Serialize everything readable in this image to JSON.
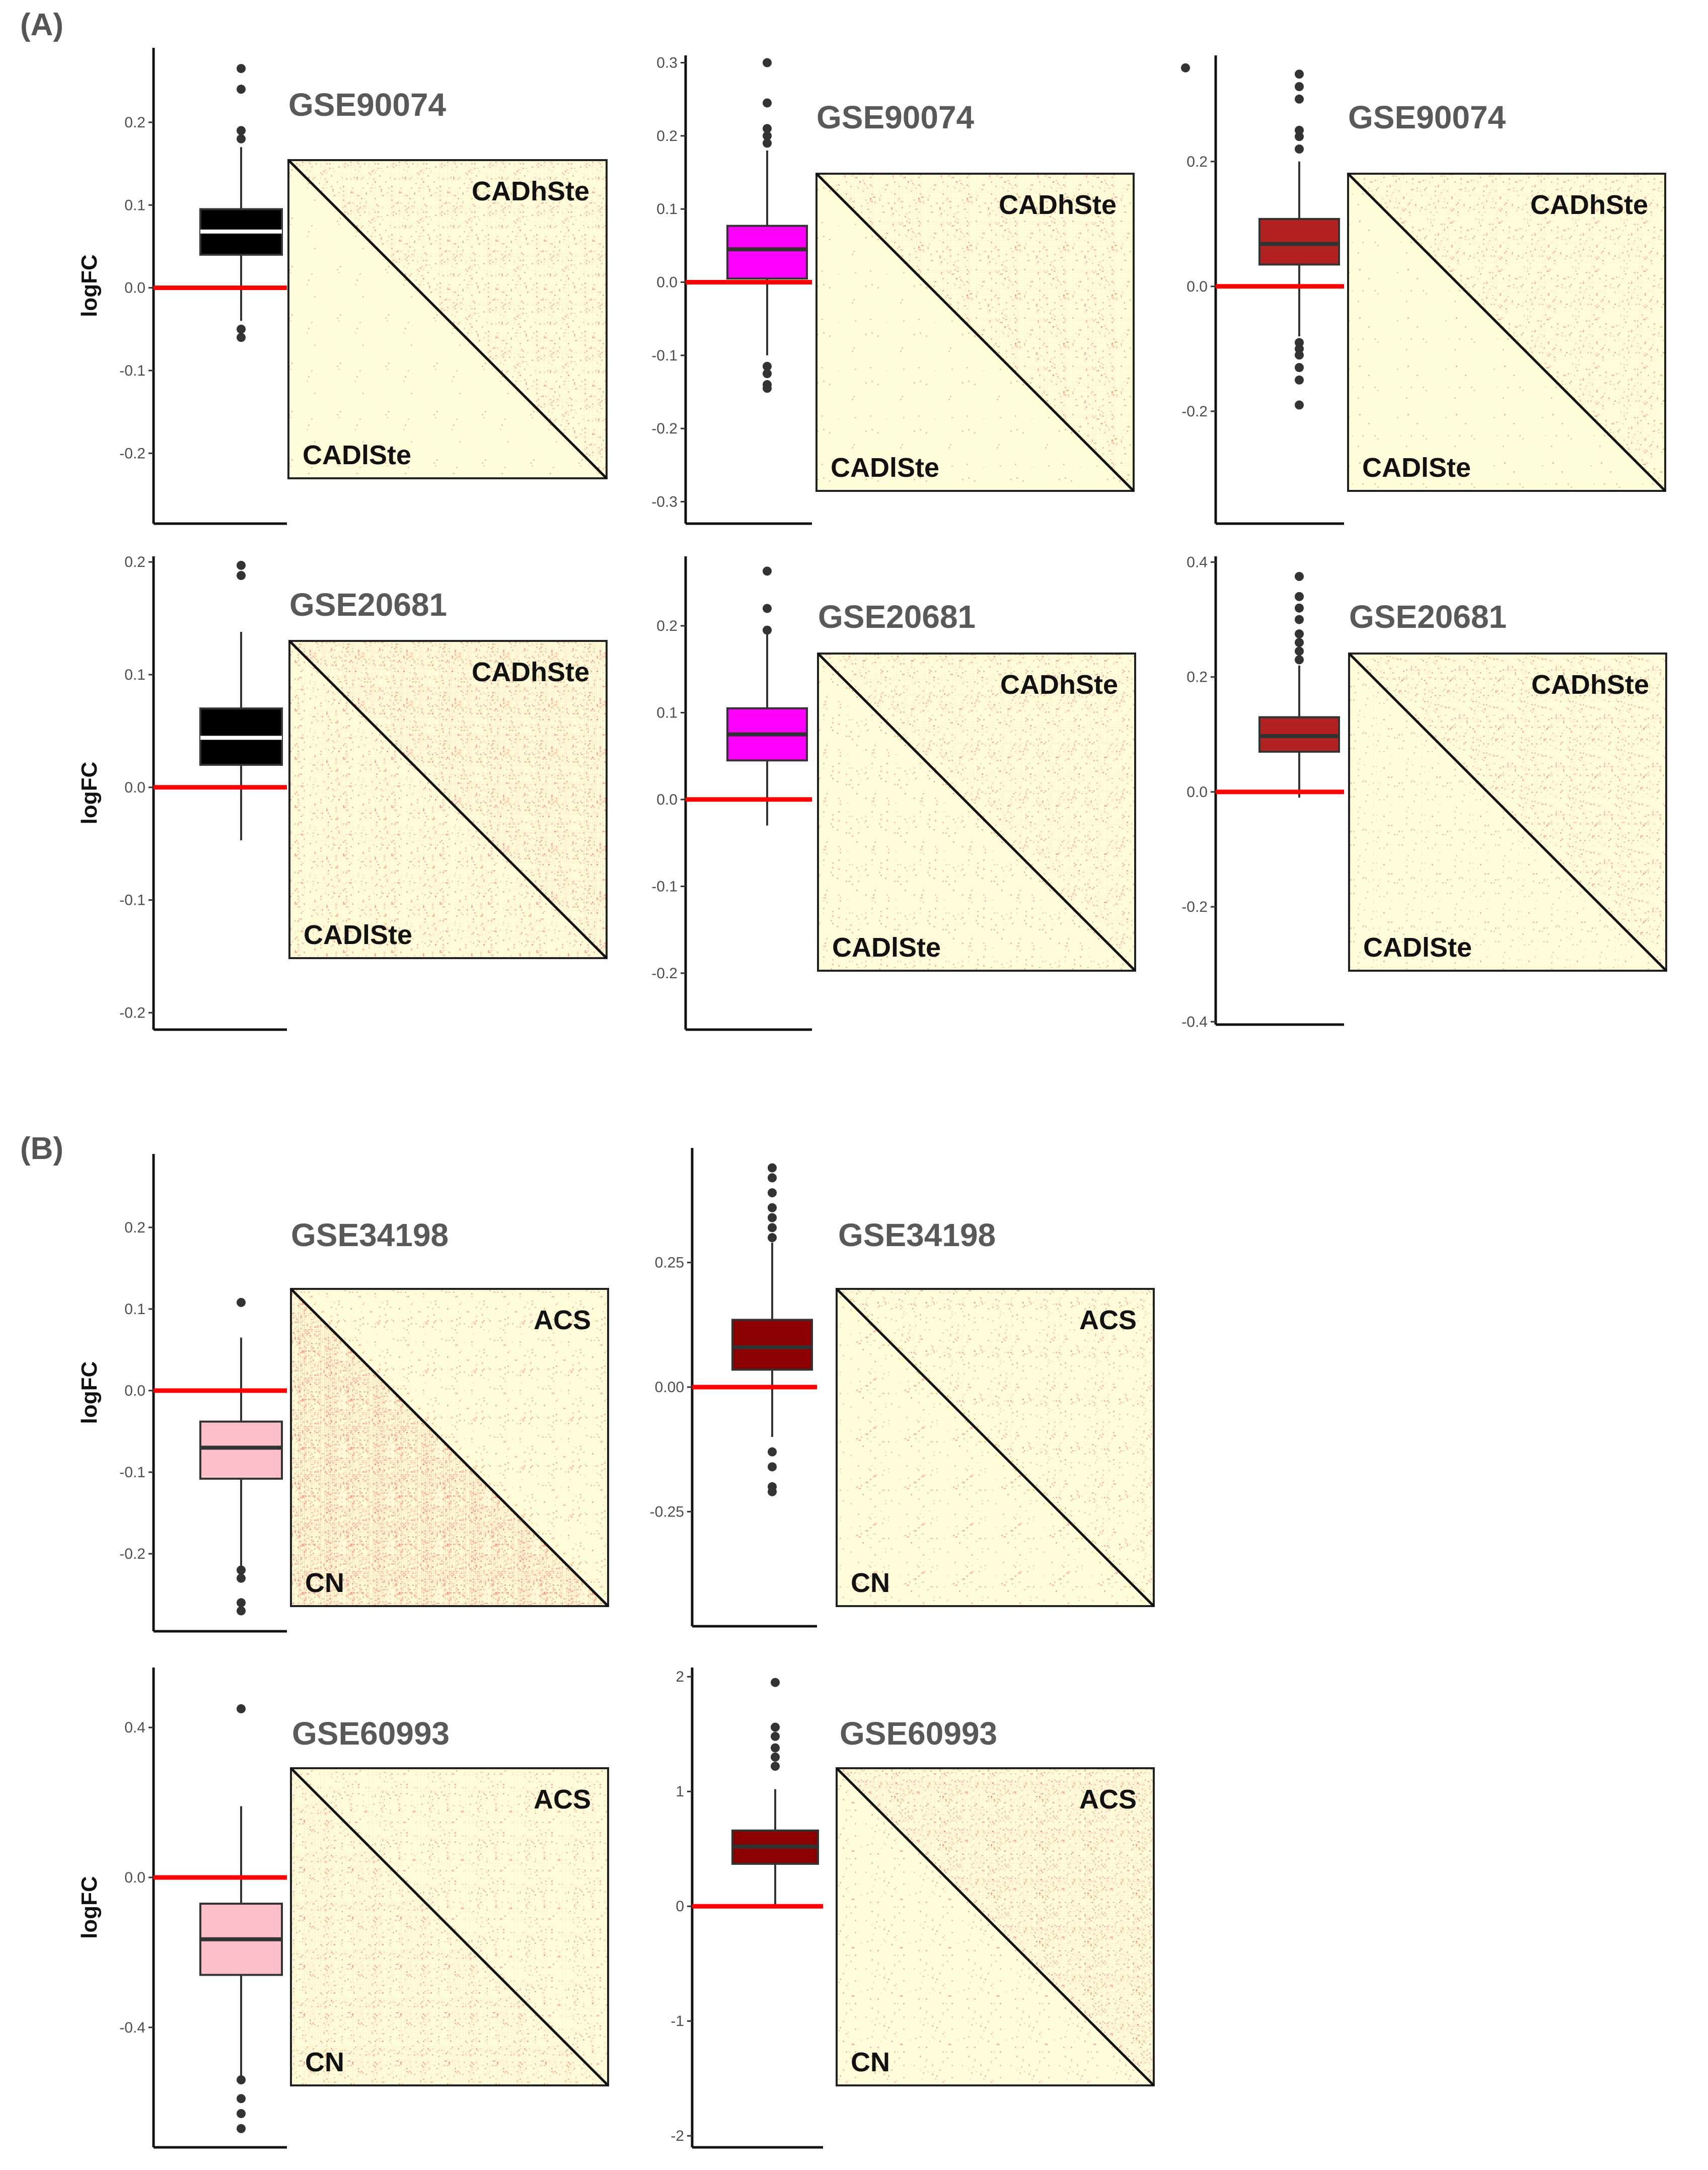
{
  "figure": {
    "panel_labels": [
      "(A)",
      "(B)"
    ],
    "colors": {
      "zero_line": "#ff0000",
      "heatmap_bg": "#fffedb",
      "heatmap_speckle": "#f08070",
      "axis": "#111111"
    }
  },
  "chart_data": [
    {
      "id": "A1a",
      "type": "box",
      "panel": "(A)",
      "dataset": "GSE90074",
      "ylabel": "logFC",
      "ylim": [
        -0.285,
        0.29
      ],
      "ticks": [
        -0.2,
        -0.1,
        0.0,
        0.1,
        0.2
      ],
      "tick_labels": [
        "-0.2",
        "-0.1",
        "0.0",
        "0.1",
        "0.2"
      ],
      "box": {
        "q1": 0.04,
        "median": 0.068,
        "q3": 0.095,
        "whisker_low": -0.04,
        "whisker_high": 0.17
      },
      "outliers": [
        -0.05,
        -0.06,
        0.18,
        0.19,
        0.24,
        0.265
      ],
      "fill": "#000000",
      "median_color": "#ffffff",
      "heatmap": {
        "title": "GSE90074",
        "upper_label": "CADhSte",
        "lower_label": "CADlSte",
        "upper_intensity": 0.35,
        "lower_intensity": 0.03
      }
    },
    {
      "id": "A1b",
      "type": "box",
      "panel": "(A)",
      "dataset": "GSE90074",
      "ylabel": "",
      "ylim": [
        -0.33,
        0.31
      ],
      "ticks": [
        -0.3,
        -0.2,
        -0.1,
        0.0,
        0.1,
        0.2,
        0.3
      ],
      "tick_labels": [
        "-0.3",
        "-0.2",
        "-0.1",
        "0.0",
        "0.1",
        "0.2",
        "0.3"
      ],
      "box": {
        "q1": 0.005,
        "median": 0.045,
        "q3": 0.077,
        "whisker_low": -0.1,
        "whisker_high": 0.18
      },
      "outliers": [
        -0.115,
        -0.125,
        -0.14,
        -0.145,
        0.19,
        0.2,
        0.21,
        0.245,
        0.3
      ],
      "fill": "#ff00ff",
      "median_color": "#333333",
      "heatmap": {
        "title": "GSE90074",
        "upper_label": "CADhSte",
        "lower_label": "CADlSte",
        "upper_intensity": 0.3,
        "lower_intensity": 0.03
      }
    },
    {
      "id": "A1c",
      "type": "box",
      "panel": "(A)",
      "dataset": "GSE90074",
      "ylabel": "",
      "ylim": [
        -0.38,
        0.37
      ],
      "ticks": [
        -0.2,
        0.0,
        0.2
      ],
      "tick_labels": [
        "-0.2",
        "0.0",
        "0.2"
      ],
      "box": {
        "q1": 0.035,
        "median": 0.068,
        "q3": 0.108,
        "whisker_low": -0.08,
        "whisker_high": 0.2
      },
      "outliers": [
        -0.09,
        -0.1,
        -0.11,
        -0.13,
        -0.15,
        -0.19,
        0.22,
        0.24,
        0.25,
        0.3,
        0.32,
        0.34
      ],
      "fill": "#b22222",
      "median_color": "#333333",
      "heatmap": {
        "title": "GSE90074",
        "upper_label": "CADhSte",
        "lower_label": "CADlSte",
        "upper_intensity": 0.3,
        "lower_intensity": 0.03
      }
    },
    {
      "id": "A2a",
      "type": "box",
      "panel": "(A)",
      "dataset": "GSE20681",
      "ylabel": "logFC",
      "ylim": [
        -0.215,
        0.205
      ],
      "ticks": [
        -0.2,
        -0.1,
        0.0,
        0.1,
        0.2
      ],
      "tick_labels": [
        "-0.2",
        "-0.1",
        "0.0",
        "0.1",
        "0.2"
      ],
      "box": {
        "q1": 0.02,
        "median": 0.044,
        "q3": 0.07,
        "whisker_low": -0.047,
        "whisker_high": 0.138
      },
      "outliers": [
        0.188,
        0.197
      ],
      "fill": "#000000",
      "median_color": "#ffffff",
      "heatmap": {
        "title": "GSE20681",
        "upper_label": "CADhSte",
        "lower_label": "CADlSte",
        "upper_intensity": 0.55,
        "lower_intensity": 0.35
      }
    },
    {
      "id": "A2b",
      "type": "box",
      "panel": "(A)",
      "dataset": "GSE20681",
      "ylabel": "",
      "ylim": [
        -0.265,
        0.28
      ],
      "ticks": [
        -0.2,
        -0.1,
        0.0,
        0.1,
        0.2
      ],
      "tick_labels": [
        "-0.2",
        "-0.1",
        "0.0",
        "0.1",
        "0.2"
      ],
      "box": {
        "q1": 0.045,
        "median": 0.075,
        "q3": 0.105,
        "whisker_low": -0.03,
        "whisker_high": 0.19
      },
      "outliers": [
        0.195,
        0.22,
        0.263
      ],
      "fill": "#ff00ff",
      "median_color": "#333333",
      "heatmap": {
        "title": "GSE20681",
        "upper_label": "CADhSte",
        "lower_label": "CADlSte",
        "upper_intensity": 0.35,
        "lower_intensity": 0.15
      }
    },
    {
      "id": "A2c",
      "type": "box",
      "panel": "(A)",
      "dataset": "GSE20681",
      "ylabel": "",
      "ylim": [
        -0.405,
        0.41
      ],
      "ticks": [
        -0.4,
        -0.2,
        0.0,
        0.2,
        0.4
      ],
      "tick_labels": [
        "-0.4",
        "-0.2",
        "0.0",
        "0.2",
        "0.4"
      ],
      "box": {
        "q1": 0.07,
        "median": 0.097,
        "q3": 0.13,
        "whisker_low": -0.01,
        "whisker_high": 0.22
      },
      "outliers": [
        0.23,
        0.245,
        0.26,
        0.275,
        0.3,
        0.32,
        0.34,
        0.375
      ],
      "fill": "#b22222",
      "median_color": "#333333",
      "heatmap": {
        "title": "GSE20681",
        "upper_label": "CADhSte",
        "lower_label": "CADlSte",
        "upper_intensity": 0.35,
        "lower_intensity": 0.15
      }
    },
    {
      "id": "B1a",
      "type": "box",
      "panel": "(B)",
      "dataset": "GSE34198",
      "ylabel": "logFC",
      "ylim": [
        -0.295,
        0.29
      ],
      "ticks": [
        -0.2,
        -0.1,
        0.0,
        0.1,
        0.2
      ],
      "tick_labels": [
        "-0.2",
        "-0.1",
        "0.0",
        "0.1",
        "0.2"
      ],
      "box": {
        "q1": -0.108,
        "median": -0.07,
        "q3": -0.038,
        "whisker_low": -0.215,
        "whisker_high": 0.065
      },
      "outliers": [
        -0.22,
        -0.23,
        -0.26,
        -0.27,
        0.108
      ],
      "fill": "#ffc0cb",
      "median_color": "#333333",
      "heatmap": {
        "title": "GSE34198",
        "upper_label": "ACS",
        "lower_label": "CN",
        "upper_intensity": 0.2,
        "lower_intensity": 1.0
      }
    },
    {
      "id": "B1b",
      "type": "box",
      "panel": "(B)",
      "dataset": "GSE34198",
      "ylabel": "",
      "ylim": [
        -0.48,
        0.48
      ],
      "ticks": [
        -0.25,
        0.0,
        0.25
      ],
      "tick_labels": [
        "-0.25",
        "0.00",
        "0.25"
      ],
      "box": {
        "q1": 0.035,
        "median": 0.08,
        "q3": 0.135,
        "whisker_low": -0.1,
        "whisker_high": 0.29
      },
      "outliers": [
        -0.13,
        -0.16,
        -0.2,
        -0.21,
        0.3,
        0.32,
        0.34,
        0.36,
        0.39,
        0.42,
        0.44
      ],
      "fill": "#8b0000",
      "median_color": "#333333",
      "heatmap": {
        "title": "GSE34198",
        "upper_label": "ACS",
        "lower_label": "CN",
        "upper_intensity": 0.25,
        "lower_intensity": 0.15
      }
    },
    {
      "id": "B2a",
      "type": "box",
      "panel": "(B)",
      "dataset": "GSE60993",
      "ylabel": "logFC",
      "ylim": [
        -0.72,
        0.56
      ],
      "ticks": [
        -0.4,
        0.0,
        0.4
      ],
      "tick_labels": [
        "-0.4",
        "0.0",
        "0.4"
      ],
      "box": {
        "q1": -0.26,
        "median": -0.165,
        "q3": -0.07,
        "whisker_low": -0.53,
        "whisker_high": 0.19
      },
      "outliers": [
        -0.54,
        -0.59,
        -0.63,
        -0.67,
        0.45
      ],
      "fill": "#ffc0cb",
      "median_color": "#333333",
      "heatmap": {
        "title": "GSE60993",
        "upper_label": "ACS",
        "lower_label": "CN",
        "upper_intensity": 0.3,
        "lower_intensity": 0.4
      }
    },
    {
      "id": "B2b",
      "type": "box",
      "panel": "(B)",
      "dataset": "GSE60993",
      "ylabel": "",
      "ylim": [
        -2.1,
        2.08
      ],
      "ticks": [
        -2,
        -1,
        0,
        1,
        2
      ],
      "tick_labels": [
        "-2",
        "-1",
        "0",
        "1",
        "2"
      ],
      "box": {
        "q1": 0.37,
        "median": 0.52,
        "q3": 0.66,
        "whisker_low": 0.0,
        "whisker_high": 1.02
      },
      "outliers": [
        1.22,
        1.3,
        1.38,
        1.48,
        1.56,
        1.95
      ],
      "fill": "#8b0000",
      "median_color": "#333333",
      "heatmap": {
        "title": "GSE60993",
        "upper_label": "ACS",
        "lower_label": "CN",
        "upper_intensity": 0.55,
        "lower_intensity": 0.15
      }
    }
  ]
}
